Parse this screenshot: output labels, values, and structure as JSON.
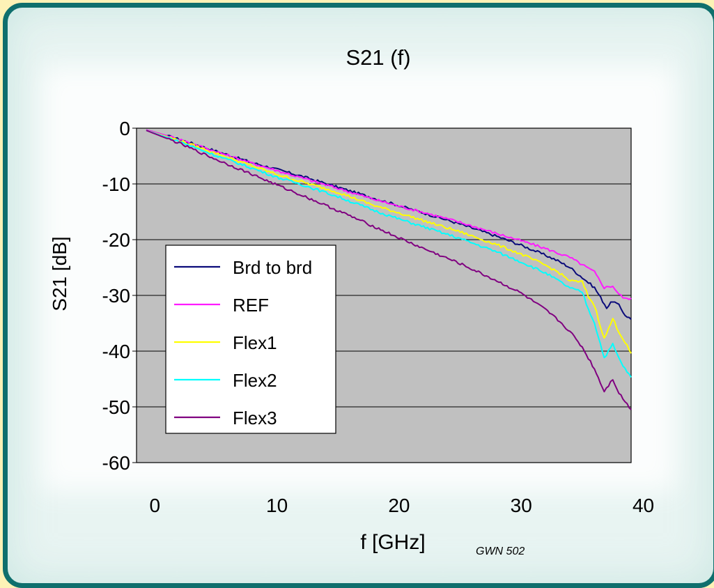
{
  "chart_data": {
    "type": "line",
    "title": "S21 (f)",
    "xlabel": "f [GHz]",
    "ylabel": "S21 [dB]",
    "annotation": "GWN 502",
    "xlim": [
      -1.5,
      39
    ],
    "ylim": [
      -60,
      0
    ],
    "x_ticks": [
      0,
      10,
      20,
      30,
      40
    ],
    "y_ticks": [
      0,
      -10,
      -20,
      -30,
      -40,
      -50,
      -60
    ],
    "grid": true,
    "legend_position": "left-inside",
    "series": [
      {
        "name": "Brd to brd",
        "color": "#0a0a7a",
        "points": [
          [
            -0.7,
            -0.3
          ],
          [
            2,
            -2.0
          ],
          [
            5,
            -4.1
          ],
          [
            8,
            -6.2
          ],
          [
            10,
            -7.4
          ],
          [
            12,
            -8.6
          ],
          [
            15,
            -10.6
          ],
          [
            18,
            -12.6
          ],
          [
            20,
            -13.9
          ],
          [
            22,
            -15.2
          ],
          [
            25,
            -17.2
          ],
          [
            28,
            -19.4
          ],
          [
            30,
            -21.0
          ],
          [
            32,
            -22.8
          ],
          [
            33,
            -23.8
          ],
          [
            34,
            -25.0
          ],
          [
            35,
            -26.8
          ],
          [
            36,
            -28.6
          ],
          [
            37,
            -32.2
          ],
          [
            37.5,
            -31.0
          ],
          [
            38,
            -31.8
          ],
          [
            38.5,
            -33.5
          ],
          [
            39,
            -34.3
          ]
        ]
      },
      {
        "name": "REF",
        "color": "#ff1aff",
        "points": [
          [
            -0.7,
            -0.3
          ],
          [
            2,
            -2.0
          ],
          [
            5,
            -4.2
          ],
          [
            8,
            -6.3
          ],
          [
            10,
            -7.6
          ],
          [
            12,
            -8.9
          ],
          [
            15,
            -10.8
          ],
          [
            18,
            -12.8
          ],
          [
            20,
            -14.0
          ],
          [
            22,
            -15.1
          ],
          [
            25,
            -16.9
          ],
          [
            28,
            -18.9
          ],
          [
            30,
            -20.2
          ],
          [
            32,
            -21.6
          ],
          [
            33,
            -22.4
          ],
          [
            34,
            -23.2
          ],
          [
            35,
            -24.5
          ],
          [
            36,
            -25.8
          ],
          [
            36.8,
            -28.6
          ],
          [
            37.5,
            -28.3
          ],
          [
            38,
            -29.8
          ],
          [
            38.5,
            -30.6
          ],
          [
            39,
            -30.5
          ]
        ]
      },
      {
        "name": "Flex1",
        "color": "#ffff00",
        "points": [
          [
            -0.7,
            -0.4
          ],
          [
            2,
            -2.2
          ],
          [
            5,
            -4.5
          ],
          [
            8,
            -6.8
          ],
          [
            10,
            -8.3
          ],
          [
            12,
            -9.6
          ],
          [
            15,
            -11.5
          ],
          [
            18,
            -13.9
          ],
          [
            20,
            -15.2
          ],
          [
            22,
            -16.6
          ],
          [
            25,
            -18.6
          ],
          [
            28,
            -20.9
          ],
          [
            30,
            -22.6
          ],
          [
            32,
            -24.6
          ],
          [
            33,
            -25.8
          ],
          [
            34,
            -27.4
          ],
          [
            35,
            -27.6
          ],
          [
            35.5,
            -30.2
          ],
          [
            36,
            -31.8
          ],
          [
            36.8,
            -37.8
          ],
          [
            37.5,
            -34.2
          ],
          [
            38,
            -36.5
          ],
          [
            38.5,
            -38.4
          ],
          [
            39,
            -40.4
          ]
        ]
      },
      {
        "name": "Flex2",
        "color": "#00ffff",
        "points": [
          [
            -0.7,
            -0.4
          ],
          [
            2,
            -2.4
          ],
          [
            5,
            -4.9
          ],
          [
            8,
            -7.2
          ],
          [
            10,
            -8.8
          ],
          [
            12,
            -10.1
          ],
          [
            15,
            -12.3
          ],
          [
            18,
            -14.8
          ],
          [
            20,
            -16.3
          ],
          [
            22,
            -17.7
          ],
          [
            25,
            -19.8
          ],
          [
            28,
            -22.2
          ],
          [
            30,
            -24.0
          ],
          [
            32,
            -26.0
          ],
          [
            33,
            -27.3
          ],
          [
            34,
            -28.7
          ],
          [
            35,
            -29.4
          ],
          [
            35.5,
            -32.5
          ],
          [
            36,
            -34.9
          ],
          [
            36.8,
            -41.2
          ],
          [
            37.5,
            -38.8
          ],
          [
            38,
            -41.3
          ],
          [
            38.5,
            -43.2
          ],
          [
            39,
            -44.7
          ]
        ]
      },
      {
        "name": "Flex3",
        "color": "#800080",
        "points": [
          [
            -0.7,
            -0.4
          ],
          [
            2,
            -2.7
          ],
          [
            5,
            -5.6
          ],
          [
            8,
            -8.3
          ],
          [
            10,
            -10.2
          ],
          [
            12,
            -12.0
          ],
          [
            15,
            -14.8
          ],
          [
            18,
            -17.7
          ],
          [
            20,
            -19.7
          ],
          [
            22,
            -21.6
          ],
          [
            25,
            -24.3
          ],
          [
            28,
            -27.4
          ],
          [
            30,
            -29.6
          ],
          [
            32,
            -32.6
          ],
          [
            33,
            -34.4
          ],
          [
            34,
            -36.5
          ],
          [
            35,
            -39.3
          ],
          [
            36,
            -43.2
          ],
          [
            36.8,
            -47.2
          ],
          [
            37.5,
            -45.0
          ],
          [
            38,
            -47.5
          ],
          [
            38.5,
            -49.0
          ],
          [
            39,
            -50.5
          ]
        ]
      }
    ]
  }
}
